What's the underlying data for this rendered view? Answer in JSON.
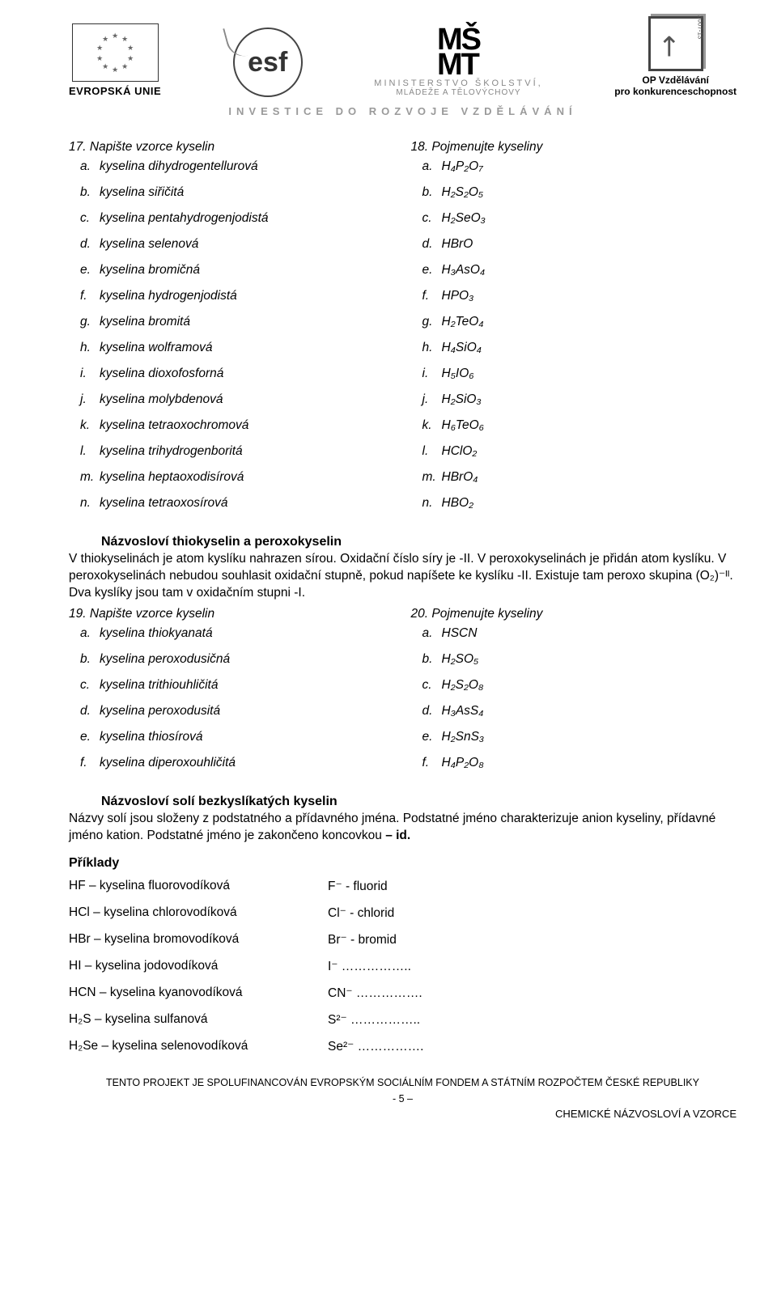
{
  "header": {
    "eu_label": "EVROPSKÁ UNIE",
    "esf_text": "esf",
    "msmt_top": "MŠ",
    "msmt_bottom": "MT",
    "msmt_line1": "MINISTERSTVO ŠKOLSTVÍ,",
    "msmt_line2": "MLÁDEŽE A TĚLOVÝCHOVY",
    "op_year": "2007-13",
    "op_line1": "OP Vzdělávání",
    "op_line2": "pro konkurenceschopnost",
    "tagline": "INVESTICE DO ROZVOJE VZDĚLÁVÁNÍ"
  },
  "q17": {
    "num": "17.",
    "title": "Napište vzorce kyselin",
    "items": [
      {
        "k": "a.",
        "t": "kyselina dihydrogentellurová"
      },
      {
        "k": "b.",
        "t": "kyselina siřičitá"
      },
      {
        "k": "c.",
        "t": "kyselina pentahydrogenjodistá"
      },
      {
        "k": "d.",
        "t": "kyselina selenová"
      },
      {
        "k": "e.",
        "t": "kyselina bromičná"
      },
      {
        "k": "f.",
        "t": "kyselina hydrogenjodistá"
      },
      {
        "k": "g.",
        "t": "kyselina bromitá"
      },
      {
        "k": "h.",
        "t": "kyselina wolframová"
      },
      {
        "k": "i.",
        "t": "kyselina dioxofosforná"
      },
      {
        "k": "j.",
        "t": "kyselina molybdenová"
      },
      {
        "k": "k.",
        "t": "kyselina tetraoxochromová"
      },
      {
        "k": "l.",
        "t": "kyselina trihydrogenboritá"
      },
      {
        "k": "m.",
        "t": "kyselina heptaoxodisírová"
      },
      {
        "k": "n.",
        "t": "kyselina tetraoxosírová"
      }
    ]
  },
  "q18": {
    "num": "18.",
    "title": "Pojmenujte kyseliny",
    "items": [
      {
        "k": "a.",
        "f": "H₄P₂O₇"
      },
      {
        "k": "b.",
        "f": "H₂S₂O₅"
      },
      {
        "k": "c.",
        "f": "H₂SeO₃"
      },
      {
        "k": "d.",
        "f": "HBrO"
      },
      {
        "k": "e.",
        "f": "H₃AsO₄"
      },
      {
        "k": "f.",
        "f": "HPO₃"
      },
      {
        "k": "g.",
        "f": "H₂TeO₄"
      },
      {
        "k": "h.",
        "f": "H₄SiO₄"
      },
      {
        "k": "i.",
        "f": "H₅IO₆"
      },
      {
        "k": "j.",
        "f": "H₂SiO₃"
      },
      {
        "k": "k.",
        "f": "H₆TeO₆"
      },
      {
        "k": "l.",
        "f": "HClO₂"
      },
      {
        "k": "m.",
        "f": "HBrO₄"
      },
      {
        "k": "n.",
        "f": "HBO₂"
      }
    ]
  },
  "thio": {
    "title": "Názvosloví thiokyselin a peroxokyselin",
    "p1": "V thiokyselinách je atom kyslíku nahrazen sírou. Oxidační číslo síry je -II. V peroxokyselinách je přidán atom kyslíku. V peroxokyselinách nebudou souhlasit oxidační stupně, pokud napíšete ke kyslíku -II. Existuje tam peroxo skupina (O₂)⁻ᴵᴵ. Dva kyslíky jsou tam v oxidačním stupni -I."
  },
  "q19": {
    "num": "19.",
    "title": "Napište vzorce kyselin",
    "items": [
      {
        "k": "a.",
        "t": "kyselina thiokyanatá"
      },
      {
        "k": "b.",
        "t": "kyselina peroxodusičná"
      },
      {
        "k": "c.",
        "t": "kyselina trithiouhličitá"
      },
      {
        "k": "d.",
        "t": "kyselina peroxodusitá"
      },
      {
        "k": "e.",
        "t": "kyselina thiosírová"
      },
      {
        "k": "f.",
        "t": "kyselina diperoxouhličitá"
      }
    ]
  },
  "q20": {
    "num": "20.",
    "title": "Pojmenujte kyseliny",
    "items": [
      {
        "k": "a.",
        "f": "HSCN"
      },
      {
        "k": "b.",
        "f": "H₂SO₅"
      },
      {
        "k": "c.",
        "f": "H₂S₂O₈"
      },
      {
        "k": "d.",
        "f": "H₃AsS₄"
      },
      {
        "k": "e.",
        "f": "H₂SnS₃"
      },
      {
        "k": "f.",
        "f": "H₄P₂O₈"
      }
    ]
  },
  "salts": {
    "title": "Názvosloví solí bezkyslíkatých kyselin",
    "p1_a": "Názvy solí jsou složeny z podstatného a přídavného jména. Podstatné jméno charakterizuje anion kyseliny, přídavné jméno kation. Podstatné jméno je zakončeno koncovkou ",
    "p1_b": "– id."
  },
  "examples": {
    "title": "Příklady",
    "rows": [
      {
        "l": "HF – kyselina fluorovodíková",
        "r": "F⁻ - fluorid"
      },
      {
        "l": "HCl – kyselina chlorovodíková",
        "r": "Cl⁻ - chlorid"
      },
      {
        "l": "HBr – kyselina bromovodíková",
        "r": "Br⁻ - bromid"
      },
      {
        "l": "HI – kyselina jodovodíková",
        "r": "I⁻ …………….."
      },
      {
        "l": "HCN – kyselina kyanovodíková",
        "r": "CN⁻ ……………."
      },
      {
        "l": "H₂S – kyselina sulfanová",
        "r": "S²⁻ …………….."
      },
      {
        "l": "H₂Se – kyselina selenovodíková",
        "r": "Se²⁻ ……………."
      }
    ]
  },
  "footer": {
    "line": "TENTO PROJEKT JE SPOLUFINANCOVÁN EVROPSKÝM SOCIÁLNÍM FONDEM A STÁTNÍM ROZPOČTEM ČESKÉ REPUBLIKY",
    "page": "- 5 –",
    "right": "CHEMICKÉ NÁZVOSLOVÍ A VZORCE"
  }
}
